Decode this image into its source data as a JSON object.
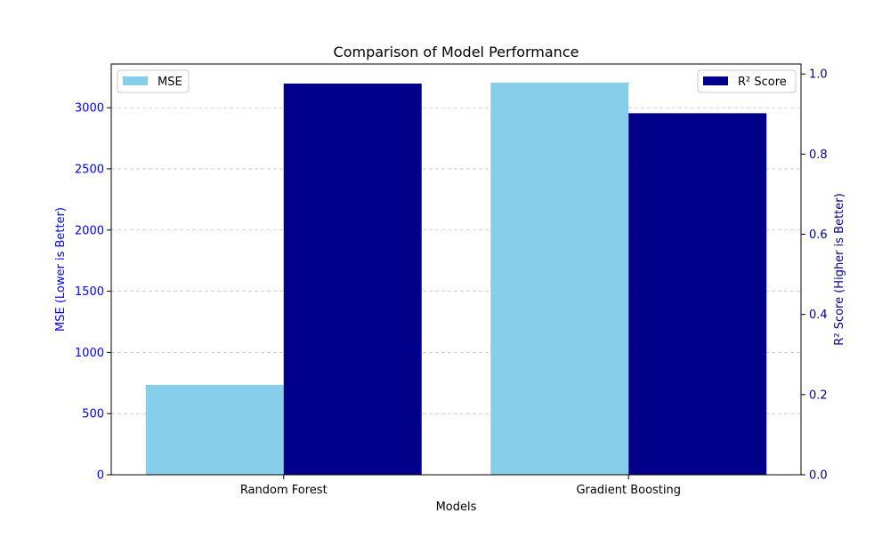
{
  "chart_data": {
    "type": "bar",
    "title": "Comparison of Model Performance",
    "xlabel": "Models",
    "categories": [
      "Random Forest",
      "Gradient Boosting"
    ],
    "series": [
      {
        "name": "MSE",
        "axis": "left",
        "values": [
          735,
          3205
        ],
        "color": "#87ceeb"
      },
      {
        "name": "R² Score",
        "axis": "right",
        "values": [
          0.976,
          0.902
        ],
        "color": "#00008b"
      }
    ],
    "axes": {
      "left": {
        "label": "MSE (Lower is Better)",
        "range": [
          0,
          3357
        ],
        "ticks": [
          0,
          500,
          1000,
          1500,
          2000,
          2500,
          3000
        ],
        "color": "#0000ff"
      },
      "right": {
        "label": "R² Score (Higher is Better)",
        "range": [
          0,
          1.0248
        ],
        "ticks": [
          0.0,
          0.2,
          0.4,
          0.6,
          0.8,
          1.0
        ],
        "tick_labels": [
          "0.0",
          "0.2",
          "0.4",
          "0.6",
          "0.8",
          "1.0"
        ],
        "color": "#00008b"
      }
    },
    "grid": {
      "horizontal": true,
      "style": "dashed"
    },
    "legends": [
      {
        "placement": "upper-left",
        "entries": [
          "MSE"
        ]
      },
      {
        "placement": "upper-right",
        "entries": [
          "R² Score"
        ]
      }
    ]
  }
}
